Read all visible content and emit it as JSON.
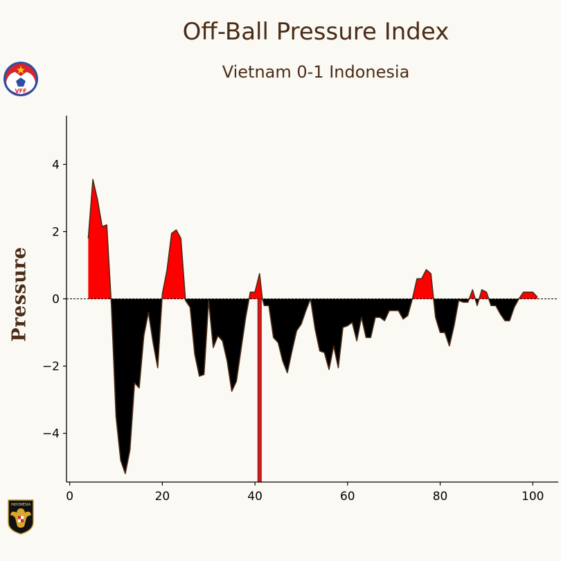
{
  "title": "Off-Ball Pressure Index",
  "subtitle": "Vietnam 0-1 Indonesia",
  "logos": {
    "home": {
      "name": "vff-logo-icon",
      "text": "VFF"
    },
    "away": {
      "name": "indonesia-logo-icon",
      "text": "INDONESIA"
    }
  },
  "colors": {
    "background": "#fbf9f4",
    "positive_fill": "#ff0000",
    "negative_fill": "#000000",
    "line": "#4a2c17",
    "text": "#4a2c17",
    "goal_marker": "#e0131a"
  },
  "chart_data": {
    "type": "area",
    "title": "Off-Ball Pressure Index",
    "subtitle": "Vietnam 0-1 Indonesia",
    "xlabel": "",
    "ylabel": "Pressure",
    "xlim": [
      -0.7,
      105.5
    ],
    "ylim": [
      -5.45,
      5.45
    ],
    "xticks": [
      0,
      20,
      40,
      60,
      80,
      100
    ],
    "yticks": [
      -4,
      -2,
      0,
      2,
      4
    ],
    "ytick_labels": [
      "−4",
      "−2",
      "0",
      "2",
      "4"
    ],
    "grid": false,
    "zero_line": "dashed",
    "goal_markers": [
      {
        "minute": 41,
        "team": "Indonesia"
      }
    ],
    "series": [
      {
        "name": "Pressure",
        "x": [
          4,
          5,
          6,
          7,
          8,
          9,
          10,
          11,
          12,
          13,
          14,
          15,
          16,
          17,
          18,
          19,
          20,
          21,
          22,
          23,
          24,
          25,
          26,
          27,
          28,
          29,
          30,
          31,
          32,
          33,
          34,
          35,
          36,
          37,
          38,
          39,
          40,
          41,
          41.6,
          42,
          43,
          44,
          45,
          46,
          47,
          48,
          49,
          50,
          51,
          52,
          53,
          54,
          55,
          56,
          57,
          58,
          59,
          60,
          61,
          62,
          63,
          64,
          65,
          66,
          67,
          68,
          69,
          70,
          71,
          72,
          73,
          74,
          75,
          76,
          77,
          78,
          79,
          80,
          81,
          82,
          83,
          84,
          85,
          86,
          87,
          88,
          89,
          90,
          91,
          92,
          93,
          94,
          95,
          96,
          97,
          98,
          99,
          100,
          101
        ],
        "values": [
          1.8,
          3.55,
          2.95,
          2.15,
          2.2,
          -0.2,
          -3.5,
          -4.8,
          -5.2,
          -4.5,
          -2.5,
          -2.65,
          -1.1,
          -0.4,
          -1.3,
          -2.05,
          0.15,
          0.85,
          1.95,
          2.05,
          1.8,
          -0.05,
          -0.25,
          -1.65,
          -2.3,
          -2.25,
          -0.05,
          -1.45,
          -1.1,
          -1.25,
          -1.85,
          -2.75,
          -2.45,
          -1.5,
          -0.55,
          0.2,
          0.2,
          0.75,
          0,
          -0.2,
          -0.2,
          -1.15,
          -1.3,
          -1.85,
          -2.2,
          -1.55,
          -0.95,
          -0.75,
          -0.35,
          0,
          -0.9,
          -1.55,
          -1.6,
          -2.1,
          -1.4,
          -2.05,
          -0.85,
          -0.8,
          -0.7,
          -1.25,
          -0.55,
          -1.15,
          -1.15,
          -0.55,
          -0.55,
          -0.65,
          -0.35,
          -0.35,
          -0.35,
          -0.6,
          -0.5,
          0.0,
          0.6,
          0.6,
          0.87,
          0.75,
          -0.55,
          -1.0,
          -1.0,
          -1.4,
          -0.8,
          -0.05,
          -0.1,
          -0.1,
          0.27,
          -0.2,
          0.27,
          0.2,
          -0.2,
          -0.2,
          -0.45,
          -0.65,
          -0.65,
          -0.25,
          0.0,
          0.2,
          0.2,
          0.2,
          0.05
        ]
      }
    ]
  }
}
